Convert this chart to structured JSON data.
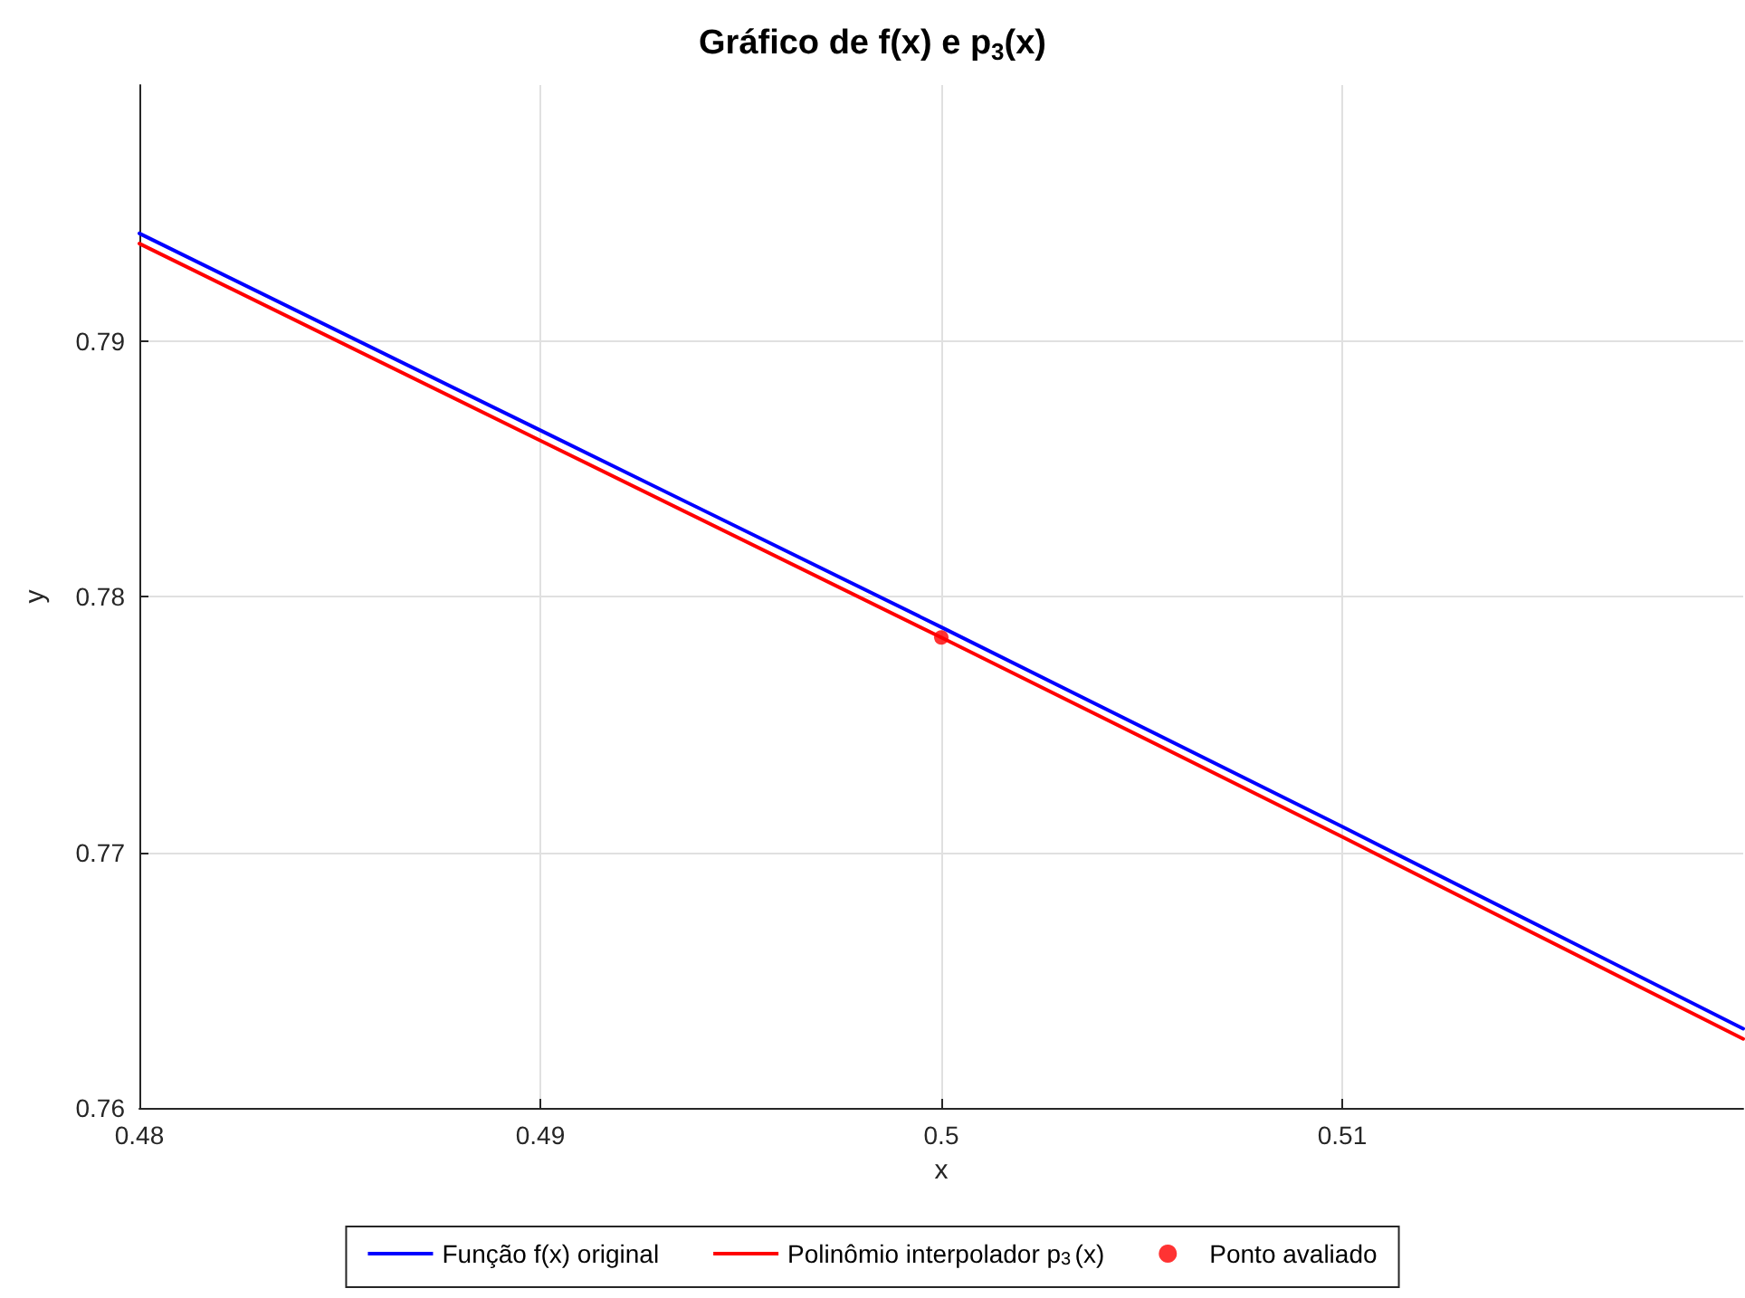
{
  "chart_data": {
    "type": "line",
    "title": "Gráfico de f(x) e p$_{3}$(x)",
    "xlabel": "x",
    "ylabel": "y",
    "x": [
      0.48,
      0.49,
      0.5,
      0.51,
      0.52
    ],
    "series": [
      {
        "name": "Função f(x) original",
        "color": "#0000ff",
        "values": [
          0.7942,
          0.7865,
          0.7788,
          0.771,
          0.7631
        ]
      },
      {
        "name": "Polinômio interpolador p$_{3}$(x)",
        "color": "#ff0000",
        "values": [
          0.7938,
          0.7861,
          0.7784,
          0.7706,
          0.7627
        ]
      },
      {
        "name": "Ponto avaliado",
        "type": "scatter",
        "marker": "circle",
        "color": "#ff0000",
        "x": [
          0.5
        ],
        "values": [
          0.7784
        ]
      }
    ],
    "xlim": [
      0.48,
      0.52
    ],
    "ylim": [
      0.76,
      0.8
    ],
    "xticks": [
      0.48,
      0.49,
      0.5,
      0.51
    ],
    "yticks": [
      0.76,
      0.77,
      0.78,
      0.79
    ],
    "grid": true,
    "legend": "bottom",
    "marker": "none",
    "line_style": "solid"
  }
}
